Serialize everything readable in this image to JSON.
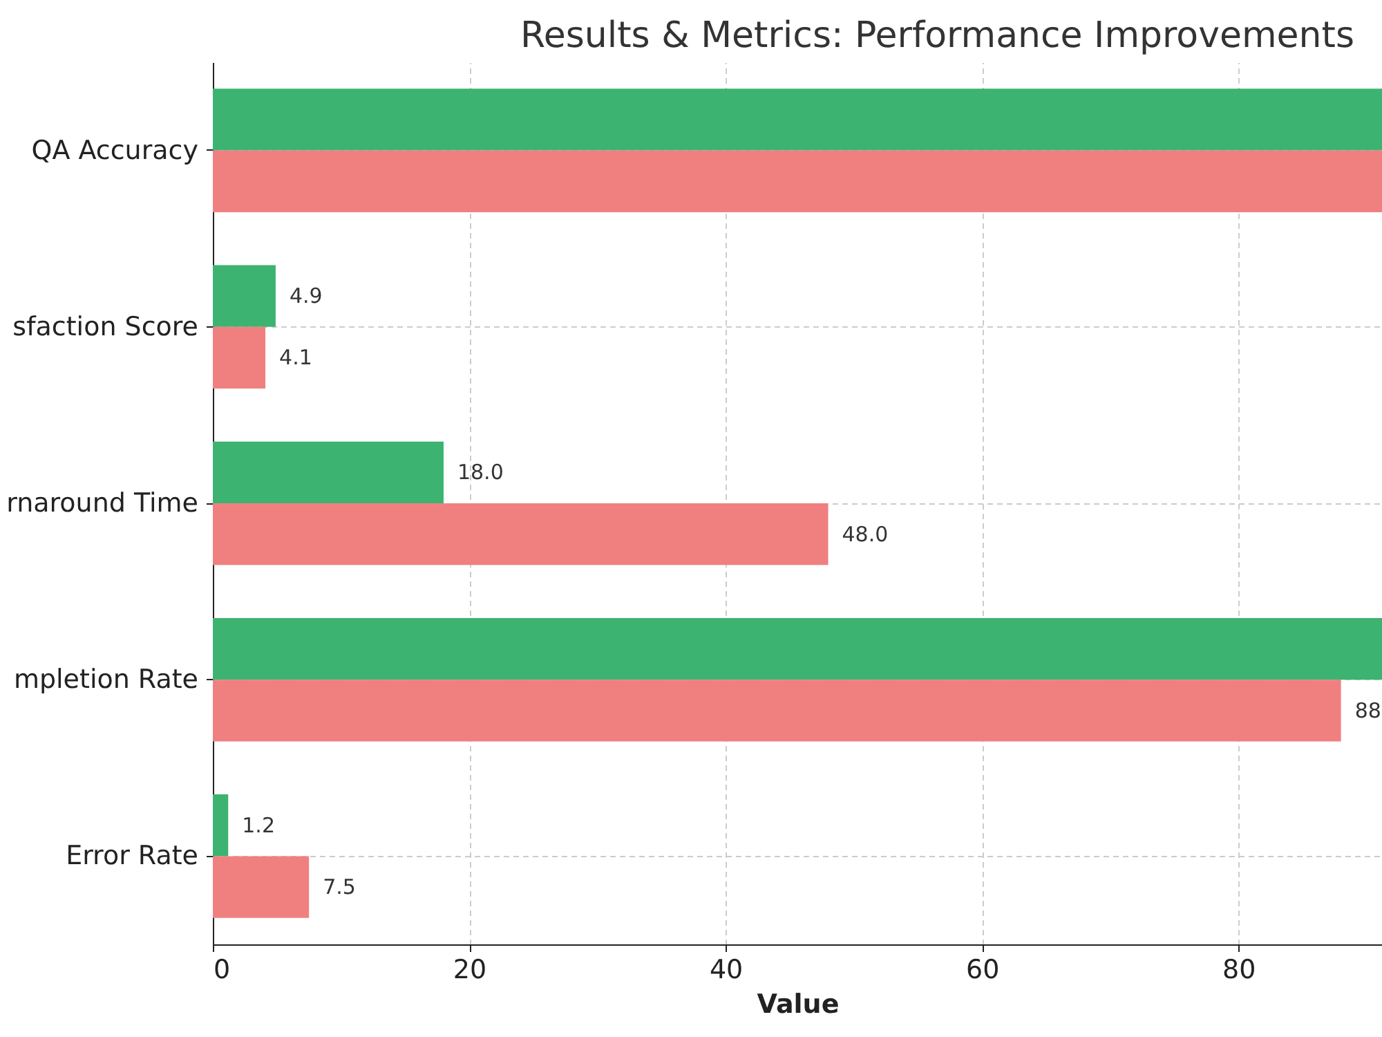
{
  "chart_data": {
    "type": "bar",
    "orientation": "horizontal",
    "title": "Results & Metrics: Performance Improvements",
    "xlabel": "Value",
    "categories": [
      "QA Accuracy",
      "sfaction Score",
      "rnaround Time",
      "mpletion Rate",
      "Error Rate"
    ],
    "series": [
      {
        "color": "#3cb371",
        "values": [
          91.2,
          4.9,
          18.0,
          91.2,
          1.2
        ],
        "value_labels": [
          null,
          "4.9",
          "18.0",
          null,
          "1.2"
        ]
      },
      {
        "color": "#f08080",
        "values": [
          91.2,
          4.1,
          48.0,
          88,
          7.5
        ],
        "value_labels": [
          null,
          "4.1",
          "48.0",
          "88",
          "7.5"
        ]
      }
    ],
    "xlim": [
      0,
      91.2
    ],
    "xticks": [
      0,
      20,
      40,
      60,
      80
    ],
    "grid": true
  }
}
